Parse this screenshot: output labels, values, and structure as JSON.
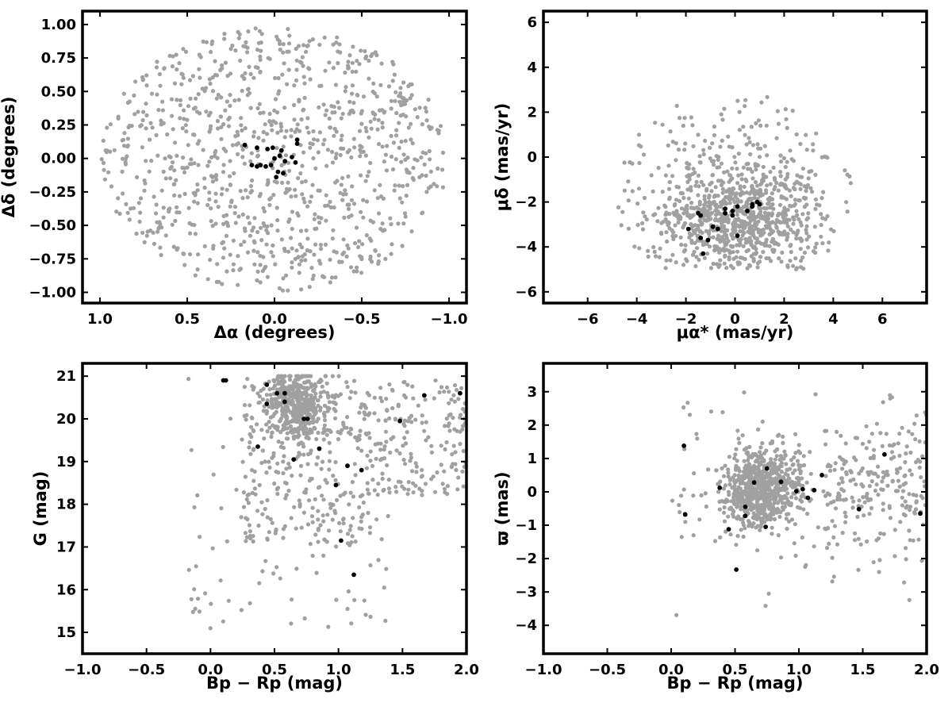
{
  "colors": {
    "field": "#a0a0a0",
    "members": "#000000"
  },
  "chart_data": [
    {
      "type": "scatter",
      "xlabel": "Δα (degrees)",
      "ylabel": "Δδ (degrees)",
      "xlim": [
        1.1,
        -1.1
      ],
      "ylim": [
        -1.08,
        1.1
      ],
      "xticks": [
        1.0,
        0.5,
        0.0,
        -0.5,
        -1.0
      ],
      "xtick_labels": [
        "1.0",
        "0.5",
        "0.0",
        "−0.5",
        "−1.0"
      ],
      "yticks": [
        1.0,
        0.75,
        0.5,
        0.25,
        0.0,
        -0.25,
        -0.5,
        -0.75,
        -1.0
      ],
      "ytick_labels": [
        "1.00",
        "0.75",
        "0.50",
        "0.25",
        "0.00",
        "−0.25",
        "−0.50",
        "−0.75",
        "−1.00"
      ],
      "field_stars": {
        "count": 1000,
        "distribution": "uniform disk",
        "radius": 1.0
      },
      "members": [
        [
          0.17,
          0.1
        ],
        [
          0.1,
          0.08
        ],
        [
          0.04,
          0.07
        ],
        [
          0.01,
          0.08
        ],
        [
          -0.04,
          0.06
        ],
        [
          -0.13,
          0.14
        ],
        [
          -0.13,
          0.11
        ],
        [
          0.13,
          -0.05
        ],
        [
          0.1,
          -0.06
        ],
        [
          0.08,
          -0.05
        ],
        [
          0.05,
          -0.06
        ],
        [
          0.02,
          -0.05
        ],
        [
          0.0,
          0.0
        ],
        [
          -0.03,
          0.02
        ],
        [
          -0.06,
          -0.02
        ],
        [
          -0.1,
          0.01
        ],
        [
          -0.12,
          -0.03
        ],
        [
          -0.02,
          -0.1
        ],
        [
          -0.05,
          -0.11
        ],
        [
          -0.01,
          -0.14
        ]
      ]
    },
    {
      "type": "scatter",
      "xlabel": "μα* (mas/yr)",
      "ylabel": "μδ (mas/yr)",
      "xlim": [
        -7.8,
        7.8
      ],
      "ylim": [
        -6.5,
        6.5
      ],
      "xticks": [
        -6,
        -4,
        -2,
        0,
        2,
        4,
        6
      ],
      "xtick_labels": [
        "−6",
        "−4",
        "−2",
        "0",
        "2",
        "4",
        "6"
      ],
      "yticks": [
        6,
        4,
        2,
        0,
        -2,
        -4,
        -6
      ],
      "ytick_labels": [
        "6",
        "4",
        "2",
        "0",
        "−2",
        "−4",
        "−6"
      ],
      "field_stars": {
        "count": 1000,
        "center": [
          0.0,
          -2.8
        ],
        "spread": [
          2.3,
          1.6
        ]
      },
      "members": [
        [
          -1.9,
          -3.2
        ],
        [
          -1.5,
          -2.5
        ],
        [
          -1.4,
          -2.6
        ],
        [
          -1.4,
          -3.6
        ],
        [
          -1.3,
          -4.3
        ],
        [
          -1.1,
          -3.7
        ],
        [
          -0.9,
          -3.1
        ],
        [
          -0.7,
          -3.2
        ],
        [
          -0.4,
          -2.3
        ],
        [
          -0.4,
          -2.5
        ],
        [
          -0.1,
          -2.6
        ],
        [
          -0.1,
          -2.4
        ],
        [
          0.1,
          -2.2
        ],
        [
          0.1,
          -3.5
        ],
        [
          0.5,
          -2.4
        ],
        [
          0.7,
          -2.1
        ],
        [
          0.7,
          -2.2
        ],
        [
          0.9,
          -2.0
        ],
        [
          1.0,
          -2.1
        ]
      ]
    },
    {
      "type": "scatter",
      "xlabel": "Bp − Rp (mag)",
      "ylabel": "G (mag)",
      "xlim": [
        -1.0,
        2.0
      ],
      "ylim": [
        14.5,
        21.3
      ],
      "xticks": [
        -1.0,
        -0.5,
        0.0,
        0.5,
        1.0,
        1.5,
        2.0
      ],
      "xtick_labels": [
        "−1.0",
        "−0.5",
        "0.0",
        "0.5",
        "1.0",
        "1.5",
        "2.0"
      ],
      "yticks": [
        21,
        20,
        19,
        18,
        17,
        16,
        15
      ],
      "ytick_labels": [
        "21",
        "20",
        "19",
        "18",
        "17",
        "16",
        "15"
      ],
      "field_stars": {
        "count": 1000,
        "core": [
          0.68,
          20.3
        ]
      },
      "members": [
        [
          0.1,
          20.9
        ],
        [
          0.12,
          20.9
        ],
        [
          0.44,
          20.8
        ],
        [
          0.52,
          20.6
        ],
        [
          0.58,
          20.6
        ],
        [
          0.44,
          20.35
        ],
        [
          0.58,
          20.4
        ],
        [
          0.73,
          20.0
        ],
        [
          0.76,
          20.0
        ],
        [
          0.37,
          19.35
        ],
        [
          0.65,
          19.05
        ],
        [
          0.85,
          19.3
        ],
        [
          1.07,
          18.9
        ],
        [
          1.18,
          18.8
        ],
        [
          0.98,
          18.45
        ],
        [
          1.02,
          17.15
        ],
        [
          1.12,
          16.35
        ],
        [
          1.48,
          19.95
        ],
        [
          1.67,
          20.55
        ],
        [
          1.95,
          20.6
        ]
      ]
    },
    {
      "type": "scatter",
      "xlabel": "Bp − Rp (mag)",
      "ylabel": "ϖ (mas)",
      "xlim": [
        -1.0,
        2.0
      ],
      "ylim": [
        -4.85,
        3.85
      ],
      "xticks": [
        -1.0,
        -0.5,
        0.0,
        0.5,
        1.0,
        1.5,
        2.0
      ],
      "xtick_labels": [
        "−1.0",
        "−0.5",
        "0.0",
        "0.5",
        "1.0",
        "1.5",
        "2.0"
      ],
      "yticks": [
        3,
        2,
        1,
        0,
        -1,
        -2,
        -3,
        -4
      ],
      "ytick_labels": [
        "3",
        "2",
        "1",
        "0",
        "−1",
        "−2",
        "−3",
        "−4"
      ],
      "field_stars": {
        "count": 1000,
        "core": [
          0.7,
          0.05
        ]
      },
      "members": [
        [
          0.1,
          1.38
        ],
        [
          0.11,
          -0.68
        ],
        [
          0.38,
          0.12
        ],
        [
          0.45,
          -1.12
        ],
        [
          0.51,
          -2.33
        ],
        [
          0.58,
          -0.45
        ],
        [
          0.58,
          -0.72
        ],
        [
          0.65,
          0.28
        ],
        [
          0.74,
          -1.05
        ],
        [
          0.75,
          0.7
        ],
        [
          0.86,
          0.3
        ],
        [
          0.98,
          0.02
        ],
        [
          1.03,
          0.08
        ],
        [
          1.07,
          -0.18
        ],
        [
          1.12,
          0.05
        ],
        [
          1.18,
          0.5
        ],
        [
          1.47,
          -0.52
        ],
        [
          1.67,
          1.12
        ],
        [
          1.95,
          -0.65
        ]
      ]
    }
  ]
}
